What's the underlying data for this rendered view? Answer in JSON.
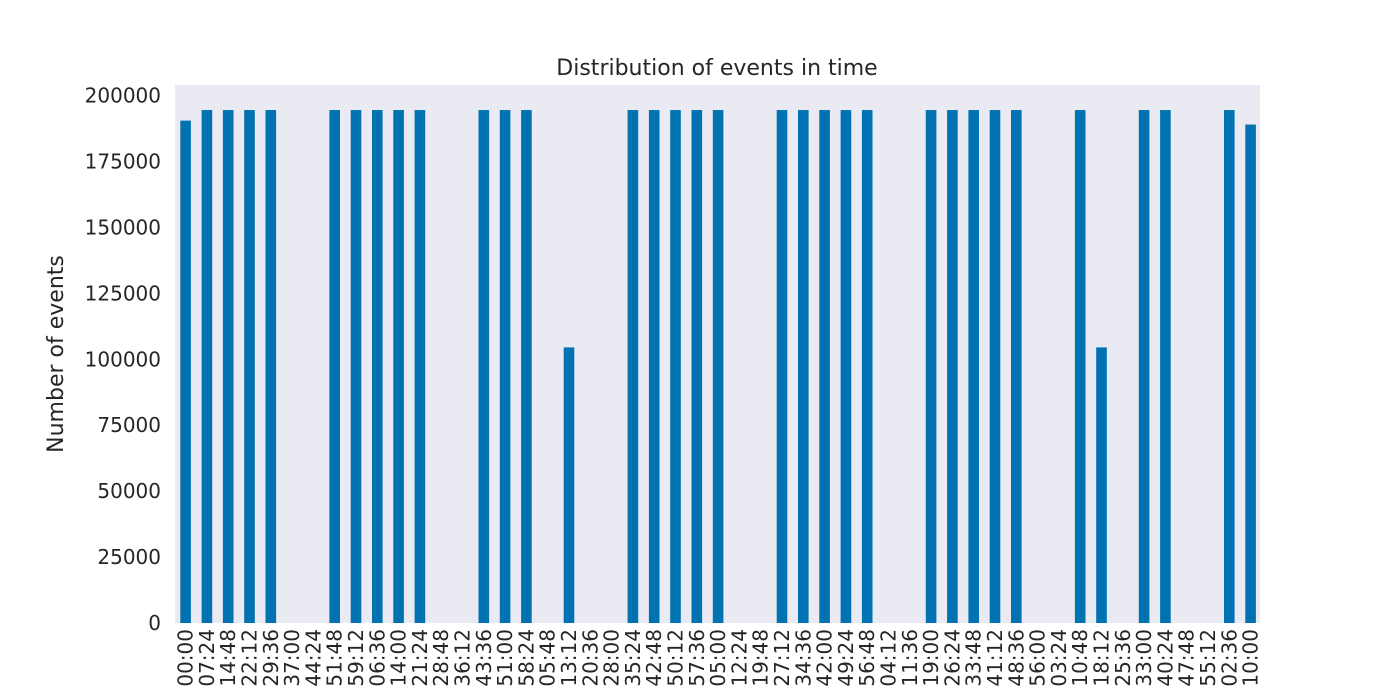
{
  "chart_data": {
    "type": "bar",
    "title": "Distribution of events in time",
    "xlabel": "",
    "ylabel": "Number of events",
    "ylim": [
      0,
      204000
    ],
    "yticks": [
      0,
      25000,
      50000,
      75000,
      100000,
      125000,
      150000,
      175000,
      200000
    ],
    "grid": false,
    "colors": {
      "bar": "#0072b2",
      "plot_background": "#eaeaf2",
      "text": "#262626"
    },
    "categories": [
      "00:00",
      "07:24",
      "14:48",
      "22:12",
      "29:36",
      "37:00",
      "44:24",
      "51:48",
      "59:12",
      "06:36",
      "14:00",
      "21:24",
      "28:48",
      "36:12",
      "43:36",
      "51:00",
      "58:24",
      "05:48",
      "13:12",
      "20:36",
      "28:00",
      "35:24",
      "42:48",
      "50:12",
      "57:36",
      "05:00",
      "12:24",
      "19:48",
      "27:12",
      "34:36",
      "42:00",
      "49:24",
      "56:48",
      "04:12",
      "11:36",
      "19:00",
      "26:24",
      "33:48",
      "41:12",
      "48:36",
      "56:00",
      "03:24",
      "10:48",
      "18:12",
      "25:36",
      "33:00",
      "40:24",
      "47:48",
      "55:12",
      "02:36",
      "10:00"
    ],
    "values": [
      190500,
      194500,
      194500,
      194500,
      194500,
      0,
      0,
      194500,
      194500,
      194500,
      194500,
      194500,
      0,
      0,
      194500,
      194500,
      194500,
      0,
      104500,
      0,
      0,
      194500,
      194500,
      194500,
      194500,
      194500,
      0,
      0,
      194500,
      194500,
      194500,
      194500,
      194500,
      0,
      0,
      194500,
      194500,
      194500,
      194500,
      194500,
      0,
      0,
      194500,
      104500,
      0,
      194500,
      194500,
      0,
      0,
      194500,
      189000
    ]
  }
}
